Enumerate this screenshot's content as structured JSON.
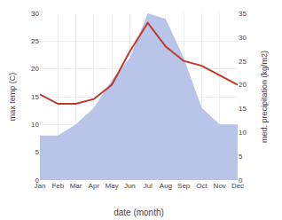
{
  "chart_data": {
    "type": "line",
    "categories": [
      "Jan",
      "Feb",
      "Mar",
      "Apr",
      "May",
      "Jun",
      "Jul",
      "Aug",
      "Sep",
      "Oct",
      "Nov",
      "Dec"
    ],
    "series": [
      {
        "type": "area",
        "color": "#b8c4e8",
        "values": [
          8,
          8,
          10,
          13,
          18,
          22,
          30,
          29,
          22,
          13,
          10,
          10
        ]
      },
      {
        "type": "line",
        "color": "#c0392b",
        "axis": "y2",
        "values": [
          18,
          16,
          16,
          17,
          20,
          27,
          33,
          28,
          25,
          24,
          22,
          20
        ]
      }
    ],
    "xlabel": "date (month)",
    "ylabel": "max temp (C)",
    "y2label": "med. precipitation (kg/m2)",
    "ylim": [
      0,
      30
    ],
    "yticks": [
      0,
      5,
      10,
      15,
      20,
      25,
      30
    ],
    "y2lim": [
      0,
      35
    ],
    "y2ticks": [
      0,
      5,
      10,
      15,
      20,
      25,
      30,
      35
    ],
    "grid": true
  }
}
